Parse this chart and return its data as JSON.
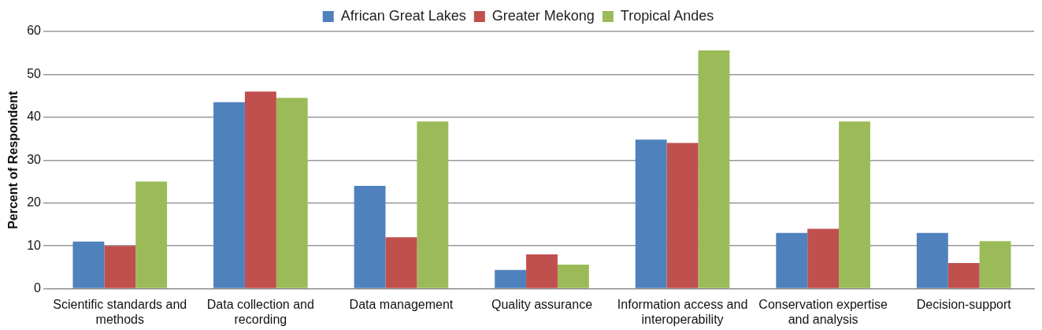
{
  "chart_data": {
    "type": "bar",
    "ylabel": "Percent of Respondent",
    "categories": [
      "Scientific standards and methods",
      "Data collection and recording",
      "Data management",
      "Quality assurance",
      "Information access and interoperability",
      "Conservation expertise and analysis",
      "Decision-support"
    ],
    "series": [
      {
        "name": "African Great Lakes",
        "color": "#4f81bd",
        "values": [
          11,
          43.5,
          24,
          4.4,
          34.8,
          13,
          13
        ]
      },
      {
        "name": "Greater Mekong",
        "color": "#c0504d",
        "values": [
          10,
          46,
          12,
          8,
          34,
          14,
          6
        ]
      },
      {
        "name": "Tropical Andes",
        "color": "#9bbb59",
        "values": [
          25,
          44.5,
          39,
          5.6,
          55.6,
          39,
          11.1
        ]
      }
    ],
    "ylim": [
      0,
      60
    ],
    "yticks": [
      0,
      10,
      20,
      30,
      40,
      50,
      60
    ],
    "grid": "y",
    "legend": "top"
  }
}
